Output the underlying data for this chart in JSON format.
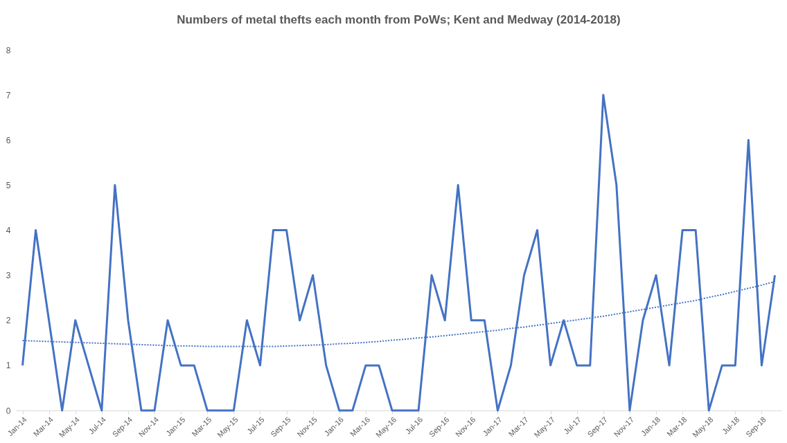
{
  "chart_data": {
    "type": "line",
    "title": "Numbers of metal thefts each month from PoWs; Kent and Medway (2014-2018)",
    "categories": [
      "Jan-14",
      null,
      "Mar-14",
      null,
      "May-14",
      null,
      "Jul-14",
      null,
      "Sep-14",
      null,
      "Nov-14",
      null,
      "Jan-15",
      null,
      "Mar-15",
      null,
      "May-15",
      null,
      "Jul-15",
      null,
      "Sep-15",
      null,
      "Nov-15",
      null,
      "Jan-16",
      null,
      "Mar-16",
      null,
      "May-16",
      null,
      "Jul-16",
      null,
      "Sep-16",
      null,
      "Nov-16",
      null,
      "Jan-17",
      null,
      "Mar-17",
      null,
      "May-17",
      null,
      "Jul-17",
      null,
      "Sep-17",
      null,
      "Nov-17",
      null,
      "Jan-18",
      null,
      "Mar-18",
      null,
      "May-18",
      null,
      "Jul-18",
      null,
      "Sep-18",
      null
    ],
    "series": [
      {
        "color": "#4472c4",
        "line_style": "solid",
        "values": [
          1,
          4,
          2,
          0,
          2,
          1,
          0,
          5,
          2,
          0,
          0,
          2,
          1,
          1,
          0,
          0,
          0,
          2,
          1,
          4,
          4,
          2,
          3,
          1,
          0,
          0,
          1,
          1,
          0,
          0,
          0,
          3,
          2,
          5,
          2,
          2,
          0,
          1,
          3,
          4,
          1,
          2,
          1,
          1,
          7,
          5,
          0,
          2,
          3,
          1,
          4,
          4,
          0,
          1,
          1,
          6,
          1,
          3
        ]
      },
      {
        "type": "line",
        "color": "#4472c4",
        "line_style": "dotted",
        "values": [
          1.55,
          1.54,
          1.53,
          1.52,
          1.51,
          1.5,
          1.49,
          1.48,
          1.47,
          1.46,
          1.45,
          1.44,
          1.43,
          1.43,
          1.42,
          1.42,
          1.42,
          1.42,
          1.42,
          1.42,
          1.43,
          1.44,
          1.45,
          1.46,
          1.48,
          1.49,
          1.51,
          1.53,
          1.56,
          1.58,
          1.61,
          1.63,
          1.66,
          1.69,
          1.72,
          1.75,
          1.78,
          1.82,
          1.85,
          1.89,
          1.93,
          1.97,
          2.01,
          2.05,
          2.09,
          2.14,
          2.19,
          2.24,
          2.29,
          2.34,
          2.39,
          2.44,
          2.51,
          2.57,
          2.64,
          2.71,
          2.78,
          2.86
        ]
      }
    ],
    "ylim": [
      0,
      8
    ],
    "yticks": [
      0,
      1,
      2,
      3,
      4,
      5,
      6,
      7,
      8
    ],
    "grid": false
  }
}
